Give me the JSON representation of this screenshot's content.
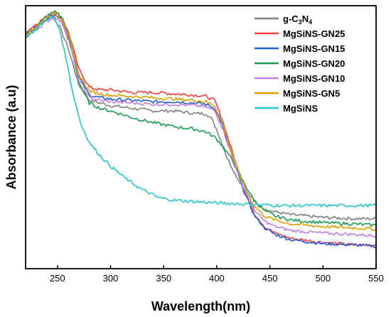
{
  "chart_data": {
    "type": "line",
    "title": "",
    "xlabel": "Wavelength(nm)",
    "ylabel": "Absorbance (a.u)",
    "xlim": [
      220,
      550
    ],
    "ylim": [
      0,
      1
    ],
    "xticks": [
      250,
      300,
      350,
      400,
      450,
      500,
      550
    ],
    "grid": false,
    "legend_position": "top-right",
    "series": [
      {
        "name": "g-C3N4",
        "label_main": "g-C",
        "label_sub1": "3",
        "label_mid": "N",
        "label_sub2": "4",
        "color": "#7f7f7f",
        "x": [
          220,
          230,
          240,
          246,
          252,
          260,
          270,
          280,
          290,
          300,
          320,
          340,
          360,
          380,
          390,
          395,
          400,
          410,
          420,
          430,
          440,
          450,
          470,
          500,
          530,
          550
        ],
        "y": [
          0.88,
          0.92,
          0.95,
          0.96,
          0.92,
          0.84,
          0.7,
          0.64,
          0.63,
          0.62,
          0.61,
          0.6,
          0.6,
          0.59,
          0.59,
          0.57,
          0.53,
          0.42,
          0.34,
          0.28,
          0.24,
          0.22,
          0.205,
          0.195,
          0.19,
          0.19
        ]
      },
      {
        "name": "MgSiNS-GN25",
        "color": "#ff3b3b",
        "x": [
          220,
          230,
          240,
          248,
          255,
          262,
          270,
          280,
          290,
          300,
          320,
          340,
          360,
          380,
          390,
          398,
          405,
          415,
          425,
          435,
          445,
          455,
          470,
          500,
          530,
          550
        ],
        "y": [
          0.9,
          0.93,
          0.96,
          0.975,
          0.95,
          0.88,
          0.76,
          0.69,
          0.68,
          0.68,
          0.67,
          0.67,
          0.665,
          0.66,
          0.655,
          0.64,
          0.57,
          0.44,
          0.31,
          0.21,
          0.16,
          0.135,
          0.115,
          0.1,
          0.09,
          0.09
        ]
      },
      {
        "name": "MgSiNS-GN15",
        "color": "#1f5fd4",
        "x": [
          220,
          230,
          240,
          248,
          255,
          262,
          270,
          280,
          290,
          300,
          320,
          340,
          360,
          380,
          390,
          398,
          405,
          415,
          425,
          435,
          445,
          455,
          470,
          500,
          530,
          550
        ],
        "y": [
          0.89,
          0.92,
          0.95,
          0.97,
          0.94,
          0.86,
          0.73,
          0.66,
          0.65,
          0.645,
          0.64,
          0.635,
          0.635,
          0.63,
          0.625,
          0.61,
          0.55,
          0.42,
          0.3,
          0.205,
          0.155,
          0.13,
          0.11,
          0.095,
          0.09,
          0.085
        ]
      },
      {
        "name": "MgSiNS-GN20",
        "color": "#1a9e4f",
        "x": [
          220,
          230,
          240,
          248,
          255,
          262,
          270,
          280,
          290,
          300,
          320,
          340,
          360,
          380,
          390,
          398,
          405,
          415,
          425,
          435,
          445,
          455,
          470,
          500,
          530,
          550
        ],
        "y": [
          0.89,
          0.92,
          0.96,
          0.98,
          0.95,
          0.86,
          0.71,
          0.63,
          0.61,
          0.6,
          0.575,
          0.555,
          0.54,
          0.53,
          0.52,
          0.5,
          0.47,
          0.41,
          0.33,
          0.26,
          0.22,
          0.2,
          0.185,
          0.175,
          0.17,
          0.165
        ]
      },
      {
        "name": "MgSiNS-GN10",
        "color": "#c07ee6",
        "x": [
          220,
          230,
          240,
          248,
          255,
          262,
          270,
          280,
          290,
          300,
          320,
          340,
          360,
          380,
          390,
          398,
          405,
          415,
          425,
          435,
          445,
          455,
          470,
          500,
          530,
          550
        ],
        "y": [
          0.88,
          0.91,
          0.94,
          0.96,
          0.93,
          0.85,
          0.72,
          0.65,
          0.64,
          0.635,
          0.63,
          0.625,
          0.625,
          0.62,
          0.615,
          0.6,
          0.54,
          0.42,
          0.31,
          0.225,
          0.18,
          0.16,
          0.145,
          0.135,
          0.13,
          0.125
        ]
      },
      {
        "name": "MgSiNS-GN5",
        "color": "#e0a000",
        "x": [
          220,
          230,
          240,
          248,
          255,
          262,
          270,
          280,
          290,
          300,
          320,
          340,
          360,
          380,
          390,
          398,
          405,
          415,
          425,
          435,
          445,
          455,
          470,
          500,
          530,
          550
        ],
        "y": [
          0.89,
          0.92,
          0.955,
          0.97,
          0.945,
          0.87,
          0.74,
          0.675,
          0.665,
          0.66,
          0.655,
          0.65,
          0.645,
          0.64,
          0.635,
          0.62,
          0.56,
          0.43,
          0.32,
          0.24,
          0.2,
          0.185,
          0.17,
          0.16,
          0.155,
          0.15
        ]
      },
      {
        "name": "MgSiNS",
        "color": "#22c7c7",
        "x": [
          220,
          230,
          240,
          246,
          252,
          258,
          265,
          272,
          280,
          290,
          300,
          315,
          330,
          345,
          360,
          380,
          400,
          430,
          460,
          500,
          530,
          550
        ],
        "y": [
          0.88,
          0.91,
          0.95,
          0.955,
          0.91,
          0.8,
          0.66,
          0.55,
          0.48,
          0.43,
          0.39,
          0.34,
          0.3,
          0.27,
          0.26,
          0.255,
          0.25,
          0.245,
          0.24,
          0.24,
          0.24,
          0.24
        ]
      }
    ]
  }
}
